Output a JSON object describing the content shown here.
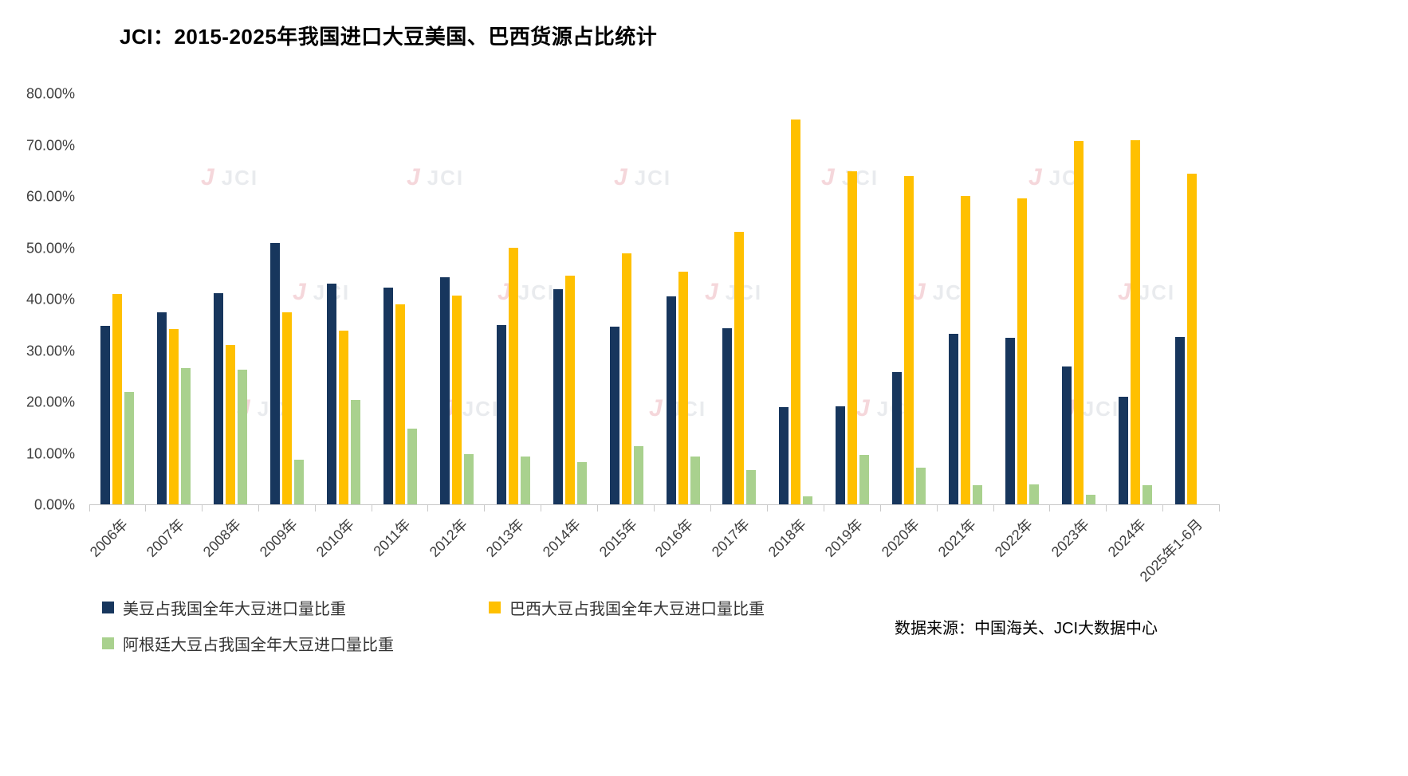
{
  "title": "JCI：2015-2025年我国进口大豆美国、巴西货源占比统计",
  "source": "数据来源：中国海关、JCI大数据中心",
  "watermark": {
    "mark": "J",
    "text": "JCI"
  },
  "chart_data": {
    "type": "bar",
    "title": "JCI：2015-2025年我国进口大豆美国、巴西货源占比统计",
    "xlabel": "",
    "ylabel": "",
    "ylim": [
      0,
      80
    ],
    "grid": false,
    "legend_position": "bottom",
    "ytick_labels": [
      "0.00%",
      "10.00%",
      "20.00%",
      "30.00%",
      "40.00%",
      "50.00%",
      "60.00%",
      "70.00%",
      "80.00%"
    ],
    "categories": [
      "2006年",
      "2007年",
      "2008年",
      "2009年",
      "2010年",
      "2011年",
      "2012年",
      "2013年",
      "2014年",
      "2015年",
      "2016年",
      "2017年",
      "2018年",
      "2019年",
      "2020年",
      "2021年",
      "2022年",
      "2023年",
      "2024年",
      "2025年1-6月"
    ],
    "series": [
      {
        "key": "us",
        "name": "美豆占我国全年大豆进口量比重",
        "color": "#17365d",
        "values": [
          34.8,
          37.5,
          41.2,
          51.0,
          43.0,
          42.3,
          44.2,
          35.0,
          41.9,
          34.7,
          40.6,
          34.3,
          18.9,
          19.1,
          25.8,
          33.3,
          32.4,
          26.8,
          21.0,
          32.6
        ]
      },
      {
        "key": "brazil",
        "name": "巴西大豆占我国全年大豆进口量比重",
        "color": "#ffc000",
        "values": [
          41.0,
          34.2,
          31.0,
          37.4,
          33.8,
          39.0,
          40.7,
          50.0,
          44.6,
          48.9,
          45.4,
          53.2,
          75.0,
          65.0,
          64.0,
          60.1,
          59.6,
          70.8,
          71.0,
          64.4
        ]
      },
      {
        "key": "argentina",
        "name": "阿根廷大豆占我国全年大豆进口量比重",
        "color": "#a9d18e",
        "values": [
          21.9,
          26.5,
          26.2,
          8.7,
          20.3,
          14.7,
          9.8,
          9.4,
          8.2,
          11.4,
          9.3,
          6.7,
          1.5,
          9.6,
          7.2,
          3.8,
          3.9,
          1.8,
          3.8,
          0
        ]
      }
    ]
  }
}
